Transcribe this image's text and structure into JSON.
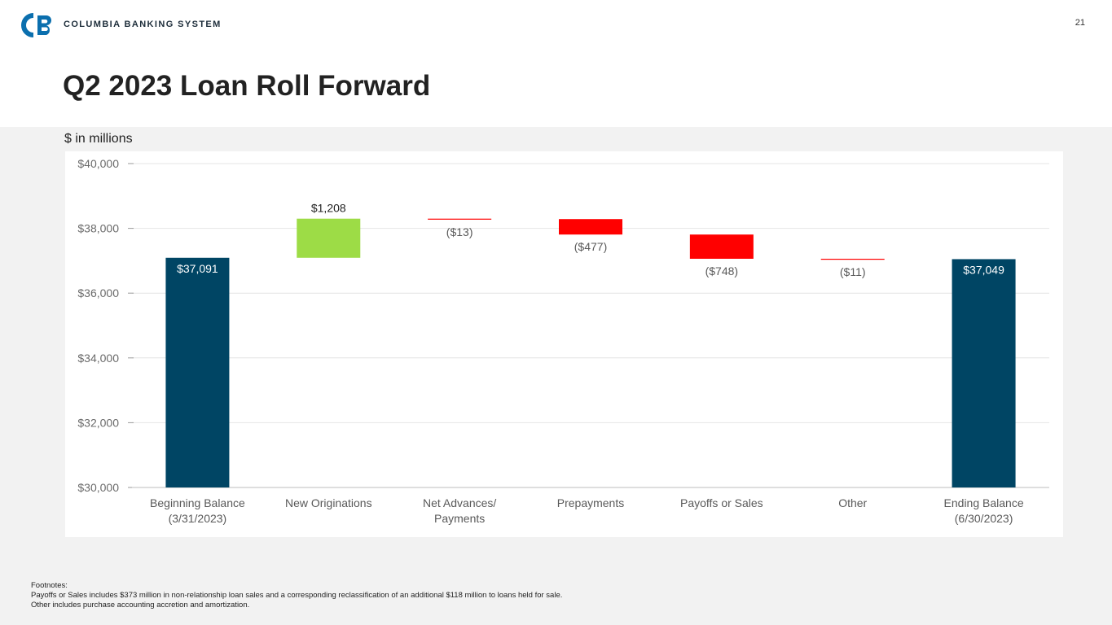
{
  "header": {
    "company_name": "COLUMBIA BANKING SYSTEM",
    "page_number": "21",
    "title": "Q2 2023 Loan Roll Forward"
  },
  "units_label": "$ in millions",
  "colors": {
    "total": "#004564",
    "increase": "#9ddc46",
    "decrease": "#ff0000",
    "brand": "#0b6fae"
  },
  "chart_data": {
    "type": "waterfall",
    "title": "Q2 2023 Loan Roll Forward",
    "ylabel": "$ in millions",
    "ylim": [
      30000,
      40000
    ],
    "y_ticks": [
      {
        "value": 30000,
        "label": "$30,000"
      },
      {
        "value": 32000,
        "label": "$32,000"
      },
      {
        "value": 34000,
        "label": "$34,000"
      },
      {
        "value": 36000,
        "label": "$36,000"
      },
      {
        "value": 38000,
        "label": "$38,000"
      },
      {
        "value": 40000,
        "label": "$40,000"
      }
    ],
    "grid": true,
    "categories": [
      [
        "Beginning Balance",
        "(3/31/2023)"
      ],
      [
        "New Originations"
      ],
      [
        "Net Advances/",
        "Payments"
      ],
      [
        "Prepayments"
      ],
      [
        "Payoffs or Sales"
      ],
      [
        "Other"
      ],
      [
        "Ending Balance",
        "(6/30/2023)"
      ]
    ],
    "bars": [
      {
        "kind": "total",
        "start": 30000,
        "end": 37091,
        "value": 37091,
        "label": "$37,091",
        "label_pos": "inside"
      },
      {
        "kind": "increase",
        "start": 37091,
        "end": 38299,
        "value": 1208,
        "label": "$1,208",
        "label_pos": "above"
      },
      {
        "kind": "decrease",
        "start": 38299,
        "end": 38286,
        "value": -13,
        "label": "($13)",
        "label_pos": "below"
      },
      {
        "kind": "decrease",
        "start": 38286,
        "end": 37809,
        "value": -477,
        "label": "($477)",
        "label_pos": "below"
      },
      {
        "kind": "decrease",
        "start": 37809,
        "end": 37061,
        "value": -748,
        "label": "($748)",
        "label_pos": "below"
      },
      {
        "kind": "decrease",
        "start": 37061,
        "end": 37050,
        "value": -11,
        "label": "($11)",
        "label_pos": "below"
      },
      {
        "kind": "total",
        "start": 30000,
        "end": 37049,
        "value": 37049,
        "label": "$37,049",
        "label_pos": "inside"
      }
    ]
  },
  "footnotes": {
    "heading": "Footnotes:",
    "lines": [
      "Payoffs or Sales includes $373 million in non-relationship loan sales and a corresponding reclassification of an additional $118 million to loans held for sale.",
      "Other includes purchase accounting accretion and amortization."
    ]
  }
}
